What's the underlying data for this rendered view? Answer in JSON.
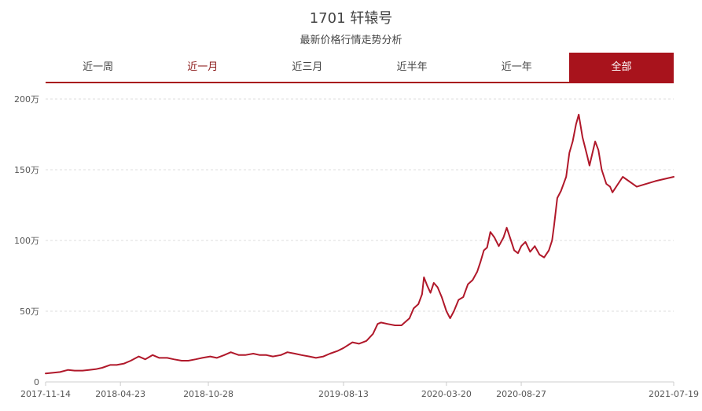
{
  "header": {
    "title": "1701 轩辕号",
    "subtitle": "最新价格行情走势分析"
  },
  "tabs": [
    {
      "label": "近一周",
      "state": "normal"
    },
    {
      "label": "近一月",
      "state": "highlight"
    },
    {
      "label": "近三月",
      "state": "normal"
    },
    {
      "label": "近半年",
      "state": "normal"
    },
    {
      "label": "近一年",
      "state": "normal"
    },
    {
      "label": "全部",
      "state": "active"
    }
  ],
  "colors": {
    "accent": "#a8131c",
    "line": "#b0182a",
    "grid": "#dddddd"
  },
  "chart_data": {
    "type": "line",
    "title": "",
    "xlabel": "",
    "ylabel": "",
    "ylim": [
      0,
      200
    ],
    "y_ticks": [
      0,
      50,
      100,
      150,
      200
    ],
    "y_tick_labels": [
      "0",
      "50万",
      "100万",
      "150万",
      "200万"
    ],
    "x_range": [
      "2017-11-14",
      "2021-07-19"
    ],
    "x_tick_labels": [
      "2017-11-14",
      "2018-04-23",
      "2018-10-28",
      "2019-08-13",
      "2020-03-20",
      "2020-08-27",
      "2021-07-19"
    ],
    "grid": "horizontal dashed",
    "legend": "none",
    "series": [
      {
        "points": [
          [
            "2017-11-14",
            6
          ],
          [
            "2017-12-01",
            6.5
          ],
          [
            "2017-12-15",
            7
          ],
          [
            "2018-01-01",
            8.5
          ],
          [
            "2018-01-15",
            8
          ],
          [
            "2018-02-01",
            8
          ],
          [
            "2018-02-15",
            8.5
          ],
          [
            "2018-03-01",
            9
          ],
          [
            "2018-03-15",
            10
          ],
          [
            "2018-04-01",
            12
          ],
          [
            "2018-04-15",
            12
          ],
          [
            "2018-05-01",
            13
          ],
          [
            "2018-05-15",
            15
          ],
          [
            "2018-06-01",
            18
          ],
          [
            "2018-06-15",
            16
          ],
          [
            "2018-07-01",
            19
          ],
          [
            "2018-07-15",
            17
          ],
          [
            "2018-08-01",
            17
          ],
          [
            "2018-08-15",
            16
          ],
          [
            "2018-09-01",
            15
          ],
          [
            "2018-09-15",
            15
          ],
          [
            "2018-10-01",
            16
          ],
          [
            "2018-10-15",
            17
          ],
          [
            "2018-11-01",
            18
          ],
          [
            "2018-11-15",
            17
          ],
          [
            "2018-12-01",
            19
          ],
          [
            "2018-12-15",
            21
          ],
          [
            "2019-01-01",
            19
          ],
          [
            "2019-01-15",
            19
          ],
          [
            "2019-02-01",
            20
          ],
          [
            "2019-02-15",
            19
          ],
          [
            "2019-03-01",
            19
          ],
          [
            "2019-03-15",
            18
          ],
          [
            "2019-04-01",
            19
          ],
          [
            "2019-04-15",
            21
          ],
          [
            "2019-05-01",
            20
          ],
          [
            "2019-05-15",
            19
          ],
          [
            "2019-06-01",
            18
          ],
          [
            "2019-06-15",
            17
          ],
          [
            "2019-07-01",
            18
          ],
          [
            "2019-07-15",
            20
          ],
          [
            "2019-08-01",
            22
          ],
          [
            "2019-08-13",
            24
          ],
          [
            "2019-09-01",
            28
          ],
          [
            "2019-09-15",
            27
          ],
          [
            "2019-10-01",
            29
          ],
          [
            "2019-10-15",
            34
          ],
          [
            "2019-10-25",
            41
          ],
          [
            "2019-11-01",
            42
          ],
          [
            "2019-11-15",
            41
          ],
          [
            "2019-12-01",
            40
          ],
          [
            "2019-12-15",
            40
          ],
          [
            "2020-01-01",
            45
          ],
          [
            "2020-01-10",
            52
          ],
          [
            "2020-01-20",
            55
          ],
          [
            "2020-01-28",
            62
          ],
          [
            "2020-02-01",
            74
          ],
          [
            "2020-02-08",
            68
          ],
          [
            "2020-02-15",
            63
          ],
          [
            "2020-02-22",
            70
          ],
          [
            "2020-03-01",
            67
          ],
          [
            "2020-03-10",
            60
          ],
          [
            "2020-03-20",
            50
          ],
          [
            "2020-03-28",
            45
          ],
          [
            "2020-04-05",
            50
          ],
          [
            "2020-04-15",
            58
          ],
          [
            "2020-04-25",
            60
          ],
          [
            "2020-05-05",
            69
          ],
          [
            "2020-05-15",
            72
          ],
          [
            "2020-05-25",
            78
          ],
          [
            "2020-06-01",
            85
          ],
          [
            "2020-06-08",
            93
          ],
          [
            "2020-06-15",
            95
          ],
          [
            "2020-06-22",
            106
          ],
          [
            "2020-07-01",
            102
          ],
          [
            "2020-07-10",
            96
          ],
          [
            "2020-07-20",
            102
          ],
          [
            "2020-07-27",
            109
          ],
          [
            "2020-08-05",
            100
          ],
          [
            "2020-08-12",
            93
          ],
          [
            "2020-08-20",
            91
          ],
          [
            "2020-08-27",
            96
          ],
          [
            "2020-09-05",
            99
          ],
          [
            "2020-09-15",
            92
          ],
          [
            "2020-09-25",
            96
          ],
          [
            "2020-10-05",
            90
          ],
          [
            "2020-10-15",
            88
          ],
          [
            "2020-10-25",
            93
          ],
          [
            "2020-11-01",
            100
          ],
          [
            "2020-11-05",
            110
          ],
          [
            "2020-11-12",
            130
          ],
          [
            "2020-11-20",
            135
          ],
          [
            "2020-12-01",
            145
          ],
          [
            "2020-12-08",
            162
          ],
          [
            "2020-12-15",
            170
          ],
          [
            "2020-12-22",
            182
          ],
          [
            "2020-12-28",
            189
          ],
          [
            "2021-01-05",
            173
          ],
          [
            "2021-01-15",
            160
          ],
          [
            "2021-01-20",
            153
          ],
          [
            "2021-02-01",
            170
          ],
          [
            "2021-02-08",
            164
          ],
          [
            "2021-02-15",
            150
          ],
          [
            "2021-02-25",
            140
          ],
          [
            "2021-03-05",
            138
          ],
          [
            "2021-03-10",
            134
          ],
          [
            "2021-04-01",
            145
          ],
          [
            "2021-05-01",
            138
          ],
          [
            "2021-06-10",
            142
          ],
          [
            "2021-07-19",
            145
          ]
        ]
      }
    ]
  }
}
